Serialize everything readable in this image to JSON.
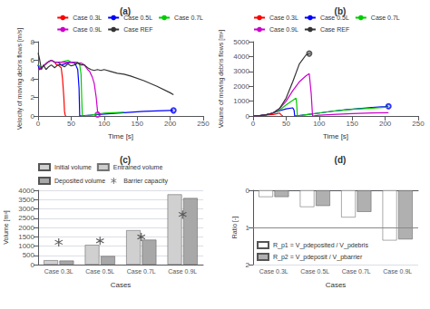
{
  "chart_data": [
    {
      "type": "line",
      "title": "(a)",
      "xlabel": "Time [s]",
      "ylabel": "Velocity of moving debris flows [m/s]",
      "xlim": [
        0,
        250
      ],
      "xticks": [
        0,
        50,
        100,
        150,
        200,
        250
      ],
      "ylim": [
        0,
        8
      ],
      "yticks": [
        0,
        2,
        4,
        6,
        8
      ],
      "grid": false,
      "legend": "upper right",
      "series": [
        {
          "name": "Case 0.3L",
          "color": "#ff0000",
          "x": [
            0,
            2,
            5,
            10,
            15,
            20,
            25,
            28,
            30,
            35,
            37,
            39,
            40,
            41,
            42
          ],
          "values": [
            5.5,
            5.0,
            5.2,
            5.5,
            5.8,
            6.0,
            5.8,
            5.5,
            5.5,
            5.2,
            4.0,
            2.0,
            0.5,
            0.1,
            0.0
          ]
        },
        {
          "name": "Case 0.5L",
          "color": "#0000ff",
          "x": [
            0,
            2,
            5,
            10,
            15,
            20,
            25,
            30,
            35,
            40,
            45,
            50,
            55,
            57,
            60,
            62,
            63,
            63,
            70,
            80,
            100,
            120,
            140,
            160,
            180,
            200,
            205
          ],
          "values": [
            5.5,
            5.0,
            5.2,
            5.5,
            5.8,
            6.0,
            5.8,
            5.8,
            5.5,
            5.6,
            5.7,
            5.8,
            5.7,
            5.5,
            5.0,
            3.0,
            0.0,
            0.0,
            0.05,
            0.1,
            0.2,
            0.3,
            0.4,
            0.5,
            0.55,
            0.6,
            0.6
          ],
          "open_points": {
            "x": [
              205
            ],
            "values": [
              0.6
            ]
          }
        },
        {
          "name": "Case 0.7L",
          "color": "#00cc00",
          "x": [
            0,
            5,
            10,
            15,
            20,
            25,
            30,
            35,
            40,
            45,
            50,
            55,
            60,
            63,
            65,
            66,
            67,
            67,
            80,
            100,
            130
          ],
          "values": [
            5.5,
            5.2,
            5.5,
            5.8,
            6.0,
            5.8,
            5.8,
            5.8,
            5.9,
            6.0,
            5.8,
            5.8,
            5.8,
            5.5,
            4.5,
            2.0,
            0.0,
            0.0,
            0.1,
            0.3,
            0.4
          ]
        },
        {
          "name": "Case 0.9L",
          "color": "#cc00cc",
          "x": [
            0,
            5,
            10,
            15,
            20,
            25,
            30,
            35,
            40,
            45,
            50,
            55,
            60,
            65,
            70,
            75,
            78,
            80,
            82,
            85,
            88,
            90,
            95
          ],
          "values": [
            5.0,
            5.2,
            5.5,
            5.8,
            6.0,
            5.8,
            5.8,
            5.8,
            5.8,
            5.8,
            5.8,
            5.8,
            5.7,
            5.7,
            5.5,
            5.0,
            4.8,
            4.5,
            4.2,
            3.5,
            2.0,
            0.5,
            0.1
          ],
          "open_points": {
            "x": [
              90
            ],
            "values": [
              0.15
            ]
          }
        },
        {
          "name": "Case REF",
          "color": "#333333",
          "x": [
            0,
            2,
            5,
            8,
            12,
            16,
            20,
            25,
            30,
            35,
            40,
            45,
            50,
            55,
            60,
            65,
            70,
            75,
            80,
            85,
            90,
            95,
            100,
            110,
            120,
            130,
            140,
            160,
            180,
            200,
            205
          ],
          "values": [
            6.8,
            6.2,
            5.0,
            5.5,
            5.0,
            5.3,
            5.5,
            5.2,
            5.5,
            5.5,
            5.3,
            5.6,
            5.4,
            5.5,
            5.7,
            5.5,
            5.5,
            5.2,
            5.0,
            4.9,
            5.0,
            4.9,
            5.0,
            4.8,
            4.6,
            4.5,
            4.3,
            3.8,
            3.2,
            2.5,
            2.3
          ]
        }
      ]
    },
    {
      "type": "line",
      "title": "(b)",
      "xlabel": "Time [s]",
      "ylabel": "Volume of moving debris flows [m³]",
      "xlim": [
        0,
        250
      ],
      "xticks": [
        0,
        50,
        100,
        150,
        200,
        250
      ],
      "ylim": [
        0,
        5000
      ],
      "yticks": [
        0,
        1000,
        2000,
        3000,
        4000,
        5000
      ],
      "grid": false,
      "legend": "upper left",
      "series": [
        {
          "name": "Case 0.3L",
          "color": "#ff0000",
          "x": [
            0,
            10,
            20,
            30,
            35,
            40,
            42,
            44,
            45
          ],
          "values": [
            0,
            20,
            60,
            100,
            150,
            200,
            100,
            20,
            0
          ]
        },
        {
          "name": "Case 0.5L",
          "color": "#0000ff",
          "x": [
            0,
            10,
            20,
            30,
            40,
            50,
            60,
            62,
            63,
            63,
            80,
            100,
            120,
            140,
            160,
            180,
            200,
            205
          ],
          "values": [
            0,
            20,
            80,
            200,
            350,
            480,
            550,
            400,
            0,
            0,
            80,
            200,
            320,
            420,
            500,
            570,
            630,
            660
          ],
          "open_points": {
            "x": [
              205
            ],
            "values": [
              660
            ]
          }
        },
        {
          "name": "Case 0.7L",
          "color": "#00cc00",
          "x": [
            0,
            10,
            20,
            30,
            40,
            50,
            60,
            65,
            66,
            67,
            67,
            80,
            100,
            120,
            150,
            180,
            205
          ],
          "values": [
            0,
            20,
            80,
            200,
            400,
            750,
            1050,
            1200,
            800,
            0,
            0,
            80,
            200,
            320,
            450,
            530,
            600
          ]
        },
        {
          "name": "Case 0.9L",
          "color": "#cc00cc",
          "x": [
            0,
            10,
            20,
            30,
            40,
            50,
            60,
            70,
            80,
            85,
            88,
            90,
            90,
            100,
            120,
            150,
            180,
            205
          ],
          "values": [
            0,
            20,
            80,
            200,
            500,
            1000,
            1700,
            2300,
            2700,
            2850,
            1500,
            0,
            0,
            50,
            100,
            160,
            200,
            220
          ]
        },
        {
          "name": "Case REF",
          "color": "#333333",
          "x": [
            0,
            10,
            20,
            30,
            40,
            50,
            60,
            70,
            80,
            85,
            87
          ],
          "values": [
            0,
            20,
            80,
            200,
            500,
            1200,
            2300,
            3500,
            4100,
            4200,
            4200
          ],
          "open_points": {
            "x": [
              85
            ],
            "values": [
              4200
            ]
          }
        }
      ]
    },
    {
      "type": "bar",
      "title": "(c)",
      "xlabel": "Cases",
      "ylabel": "Volume [m³]",
      "categories": [
        "Case 0.3L",
        "Case 0.5L",
        "Case 0.7L",
        "Case 0.9L"
      ],
      "ylim": [
        0,
        4000
      ],
      "yticks": [
        0,
        500,
        1000,
        1500,
        2000,
        2500,
        3000,
        3500,
        4000
      ],
      "grid": true,
      "legend": "upper left",
      "series": [
        {
          "name": "Initial volume",
          "type": "bar",
          "color": "#d0d0d0",
          "values": [
            235,
            1060,
            1850,
            3780
          ]
        },
        {
          "name": "Entrained volume",
          "type": "bar",
          "color": "#c0c0c0",
          "values": [
            null,
            null,
            null,
            null
          ]
        },
        {
          "name": "Deposited volume",
          "type": "bar",
          "color": "#a8a8a8",
          "values": [
            215,
            460,
            1340,
            3580
          ]
        },
        {
          "name": "Barrier capacity",
          "type": "scatter",
          "color": "#333333",
          "marker": "asterisk",
          "values": [
            1200,
            1280,
            1490,
            2700
          ]
        }
      ]
    },
    {
      "type": "bar",
      "title": "(d)",
      "xlabel": "Cases",
      "ylabel": "Ratio [-]",
      "categories": [
        "Case 0.3L",
        "Case 0.5L",
        "Case 0.7L",
        "Case 0.9L"
      ],
      "ylim": [
        2,
        0
      ],
      "yticks": [
        2,
        1,
        0
      ],
      "grid": true,
      "legend": "lower left",
      "reference_line": {
        "value": 1.0,
        "color": "#888888"
      },
      "series": [
        {
          "name": "R_p1 = V_pdeposited / V_pdebris",
          "type": "bar",
          "color": "#ffffff",
          "values": [
            0.18,
            0.45,
            0.73,
            1.35
          ]
        },
        {
          "name": "R_p2 = V_pdeposit / V_pbarrier",
          "type": "bar",
          "color": "#b0b0b0",
          "values": [
            0.18,
            0.42,
            0.58,
            1.32
          ]
        }
      ]
    }
  ]
}
